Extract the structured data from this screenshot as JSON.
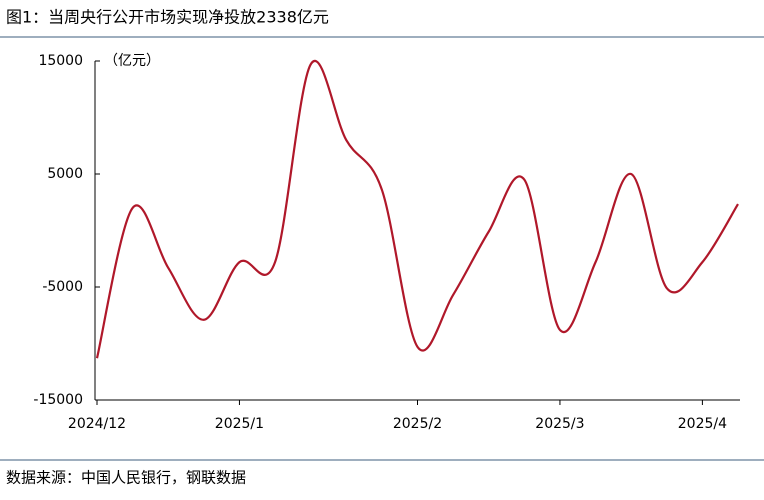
{
  "chart_data": {
    "type": "line",
    "title": "图1：当周央行公开市场实现净投放2338亿元",
    "y_label": "（亿元）",
    "source": "数据来源：中国人民银行，钢联数据",
    "categories": [
      "2024/12",
      null,
      null,
      null,
      "2025/1",
      null,
      null,
      null,
      null,
      "2025/2",
      null,
      null,
      null,
      "2025/3",
      null,
      null,
      null,
      "2025/4",
      null
    ],
    "series": [
      {
        "name": "净投放",
        "color": "#b0182a",
        "values": [
          -11300,
          2000,
          -3300,
          -7900,
          -2800,
          -2800,
          14700,
          8000,
          3600,
          -10300,
          -5700,
          -100,
          4500,
          -8800,
          -2800,
          5000,
          -5100,
          -2800,
          2338
        ]
      }
    ],
    "ylim": [
      -15000,
      15000
    ],
    "yticks": [
      15000,
      5000,
      -5000,
      -15000
    ]
  }
}
